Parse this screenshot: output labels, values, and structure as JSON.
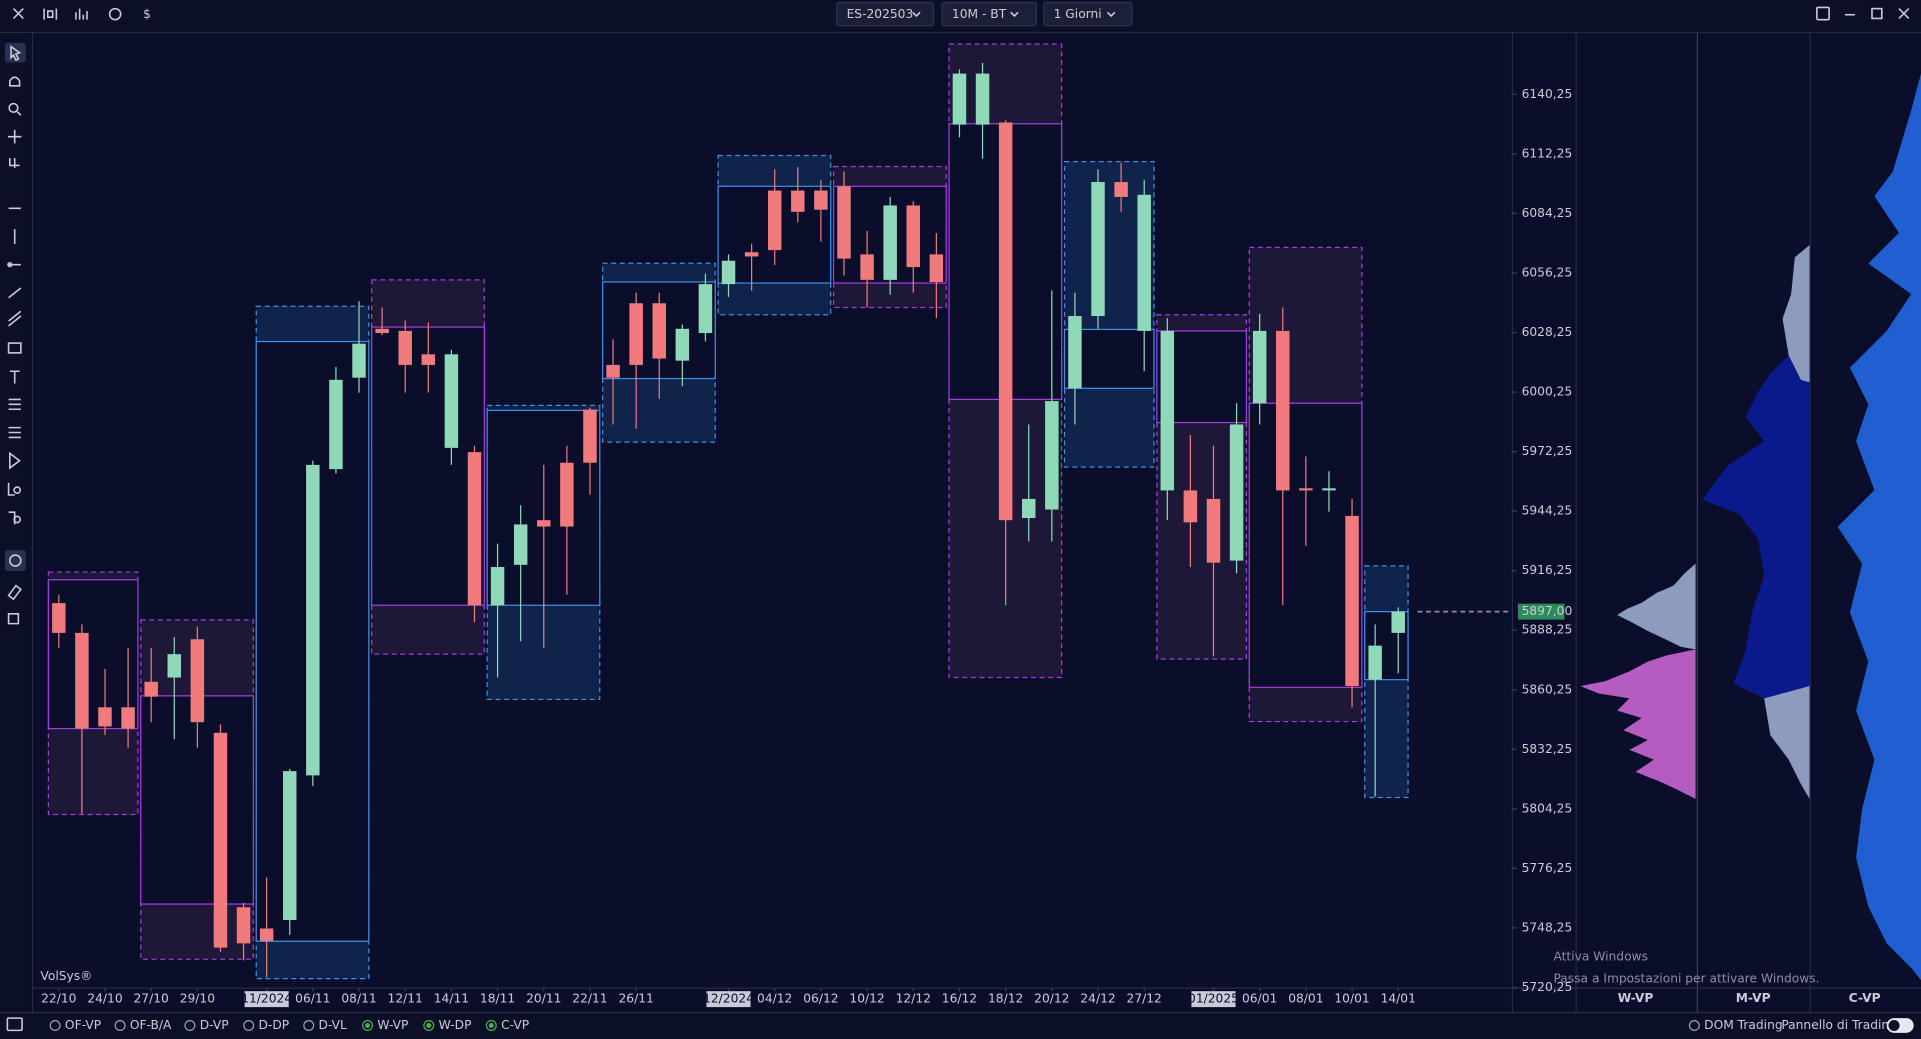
{
  "toolbar": {
    "currency_icon": "$",
    "symbol": "ES-202503",
    "timeframe": "10M - BT",
    "period": "1 Giorni"
  },
  "chart_data": {
    "type": "candlestick",
    "watermark": "VolSys®",
    "open": [
      5901,
      5887,
      5852,
      5852,
      5864,
      5866,
      5884,
      5840,
      5758,
      5748,
      5752,
      5820,
      5964,
      6007,
      6030,
      6029,
      6018,
      5974,
      5972,
      5900,
      5919,
      5940,
      5967,
      5992,
      6013,
      6042,
      6042,
      6015,
      6028,
      6051,
      6066,
      6095,
      6095,
      6095,
      6097,
      6065,
      6053,
      6088,
      6065,
      6126,
      6126,
      6127,
      5941,
      5945,
      6002,
      6036,
      6099,
      6029,
      5954,
      5954,
      5950,
      5921,
      5995,
      6029,
      5955,
      5954,
      5942,
      5865,
      5887
    ],
    "high": [
      5905,
      5891,
      5870,
      5880,
      5880,
      5885,
      5890,
      5844,
      5760,
      5772,
      5823,
      5968,
      6012,
      6043,
      6040,
      6034,
      6033,
      6020,
      5975,
      5929,
      5947,
      5966,
      5975,
      5993,
      6025,
      6047,
      6047,
      6032,
      6056,
      6065,
      6070,
      6105,
      6106,
      6100,
      6104,
      6076,
      6092,
      6090,
      6075,
      6152,
      6155,
      6128,
      5985,
      6048,
      6047,
      6105,
      6108,
      6100,
      6035,
      5980,
      5975,
      5995,
      6037,
      6040,
      5970,
      5963,
      5950,
      5891,
      5899
    ],
    "low": [
      5880,
      5802,
      5839,
      5833,
      5845,
      5837,
      5833,
      5737,
      5733,
      5725,
      5745,
      5815,
      5962,
      6000,
      6027,
      6000,
      6000,
      5966,
      5892,
      5866,
      5883,
      5880,
      5905,
      5952,
      5985,
      5983,
      5997,
      6003,
      6024,
      6045,
      6048,
      6060,
      6080,
      6071,
      6055,
      6040,
      6046,
      6047,
      6035,
      6120,
      6110,
      5900,
      5930,
      5930,
      5985,
      6030,
      6085,
      6010,
      5940,
      5918,
      5876,
      5915,
      5985,
      5900,
      5928,
      5944,
      5852,
      5810,
      5868
    ],
    "close": [
      5887,
      5842,
      5843,
      5842,
      5857,
      5877,
      5845,
      5739,
      5741,
      5742,
      5822,
      5966,
      6006,
      6023,
      6028,
      6013,
      6013,
      6018,
      5900,
      5918,
      5938,
      5937,
      5937,
      5967,
      6007,
      6013,
      6016,
      6030,
      6051,
      6062,
      6064,
      6067,
      6085,
      6086,
      6063,
      6053,
      6088,
      6059,
      6052,
      6150,
      6150,
      5940,
      5950,
      5996,
      6036,
      6099,
      6092,
      6093,
      6029,
      5939,
      5920,
      5985,
      6029,
      5954,
      5954,
      5955,
      5862,
      5881,
      5897
    ],
    "up_color": "#8fd8b8",
    "down_color": "#f07a7c",
    "ranges": [
      {
        "start": 0,
        "end": 3,
        "high": 5915.6,
        "low": 5801.6,
        "va_high": 5912,
        "va_low": 5842,
        "color": "#a63ce0"
      },
      {
        "start": 4,
        "end": 8,
        "high": 5893.1,
        "low": 5733.5,
        "va_high": 5857.4,
        "va_low": 5759.5,
        "color": "#a63ce0"
      },
      {
        "start": 9,
        "end": 13,
        "high": 6040.6,
        "low": 5724.4,
        "va_high": 6024,
        "va_low": 5742,
        "color": "#3d8fe8"
      },
      {
        "start": 14,
        "end": 18,
        "high": 6053,
        "low": 5877,
        "va_high": 6030.8,
        "va_low": 5900,
        "color": "#a63ce0"
      },
      {
        "start": 19,
        "end": 23,
        "high": 5994,
        "low": 5855.7,
        "va_high": 5991.6,
        "va_low": 5900,
        "color": "#3d8fe8"
      },
      {
        "start": 24,
        "end": 28,
        "high": 6060.8,
        "low": 5976.7,
        "va_high": 6052,
        "va_low": 6006.6,
        "color": "#3d8fe8"
      },
      {
        "start": 29,
        "end": 33,
        "high": 6111.5,
        "low": 6036.6,
        "va_high": 6097,
        "va_low": 6051.5,
        "color": "#3d8fe8"
      },
      {
        "start": 34,
        "end": 38,
        "high": 6106.3,
        "low": 6040,
        "va_high": 6097,
        "va_low": 6051.5,
        "color": "#a63ce0"
      },
      {
        "start": 39,
        "end": 43,
        "high": 6163.9,
        "low": 5866,
        "va_high": 6126.4,
        "va_low": 5996.8,
        "color": "#a63ce0"
      },
      {
        "start": 44,
        "end": 47,
        "high": 6108.6,
        "low": 5965,
        "va_high": 6029.7,
        "va_low": 6002,
        "color": "#3d8fe8"
      },
      {
        "start": 48,
        "end": 51,
        "high": 6036.6,
        "low": 5874.7,
        "va_high": 6029,
        "va_low": 5985.9,
        "color": "#a63ce0"
      },
      {
        "start": 52,
        "end": 56,
        "high": 6068.3,
        "low": 5845.3,
        "va_high": 5995,
        "va_low": 5861.4,
        "color": "#a63ce0"
      },
      {
        "start": 57,
        "end": 58,
        "high": 5918.5,
        "low": 5809.6,
        "va_high": 5897,
        "va_low": 5865,
        "color": "#3d8fe8"
      }
    ],
    "ylim": [
      5720.25,
      6168.45
    ],
    "yticks": [
      {
        "value": 6140.25,
        "label": "6140,25"
      },
      {
        "value": 6112.25,
        "label": "6112,25"
      },
      {
        "value": 6084.25,
        "label": "6084,25"
      },
      {
        "value": 6056.25,
        "label": "6056,25"
      },
      {
        "value": 6028.25,
        "label": "6028,25"
      },
      {
        "value": 6000.25,
        "label": "6000,25"
      },
      {
        "value": 5972.25,
        "label": "5972,25"
      },
      {
        "value": 5944.25,
        "label": "5944,25"
      },
      {
        "value": 5916.25,
        "label": "5916,25"
      },
      {
        "value": 5888.25,
        "label": "5888,25"
      },
      {
        "value": 5860.25,
        "label": "5860,25"
      },
      {
        "value": 5832.25,
        "label": "5832,25"
      },
      {
        "value": 5804.25,
        "label": "5804,25"
      },
      {
        "value": 5776.25,
        "label": "5776,25"
      },
      {
        "value": 5748.25,
        "label": "5748,25"
      },
      {
        "value": 5720.25,
        "label": "5720,25"
      }
    ],
    "xticks": [
      {
        "value": 0,
        "label": "22/10"
      },
      {
        "value": 2,
        "label": "24/10"
      },
      {
        "value": 4,
        "label": "27/10"
      },
      {
        "value": 6,
        "label": "29/10"
      },
      {
        "value": 9,
        "label": "11/2024"
      },
      {
        "value": 11,
        "label": "06/11"
      },
      {
        "value": 13,
        "label": "08/11"
      },
      {
        "value": 15,
        "label": "12/11"
      },
      {
        "value": 17,
        "label": "14/11"
      },
      {
        "value": 19,
        "label": "18/11"
      },
      {
        "value": 21,
        "label": "20/11"
      },
      {
        "value": 23,
        "label": "22/11"
      },
      {
        "value": 25,
        "label": "26/11"
      },
      {
        "value": 29,
        "label": "12/2024"
      },
      {
        "value": 31,
        "label": "04/12"
      },
      {
        "value": 33,
        "label": "06/12"
      },
      {
        "value": 35,
        "label": "10/12"
      },
      {
        "value": 37,
        "label": "12/12"
      },
      {
        "value": 39,
        "label": "16/12"
      },
      {
        "value": 41,
        "label": "18/12"
      },
      {
        "value": 43,
        "label": "20/12"
      },
      {
        "value": 45,
        "label": "24/12"
      },
      {
        "value": 47,
        "label": "27/12"
      },
      {
        "value": 50,
        "label": "01/2025"
      },
      {
        "value": 52,
        "label": "06/01"
      },
      {
        "value": 54,
        "label": "08/01"
      },
      {
        "value": 56,
        "label": "10/01"
      },
      {
        "value": 58,
        "label": "14/01"
      }
    ],
    "last_price": {
      "value": 5897,
      "label": "5897,00"
    }
  },
  "panels": [
    "W-VP",
    "M-VP",
    "C-VP"
  ],
  "bottom_bar": {
    "studies": [
      {
        "label": "OF-VP",
        "active": false
      },
      {
        "label": "OF-B/A",
        "active": false
      },
      {
        "label": "D-VP",
        "active": false
      },
      {
        "label": "D-DP",
        "active": false
      },
      {
        "label": "D-VL",
        "active": false
      },
      {
        "label": "W-VP",
        "active": true
      },
      {
        "label": "W-DP",
        "active": true
      },
      {
        "label": "C-VP",
        "active": true
      }
    ],
    "dom": "DOM Trading",
    "panel": "Pannello di Trading"
  },
  "windows_notice": {
    "title": "Attiva Windows",
    "text": "Passa a Impostazioni per attivare Windows."
  }
}
